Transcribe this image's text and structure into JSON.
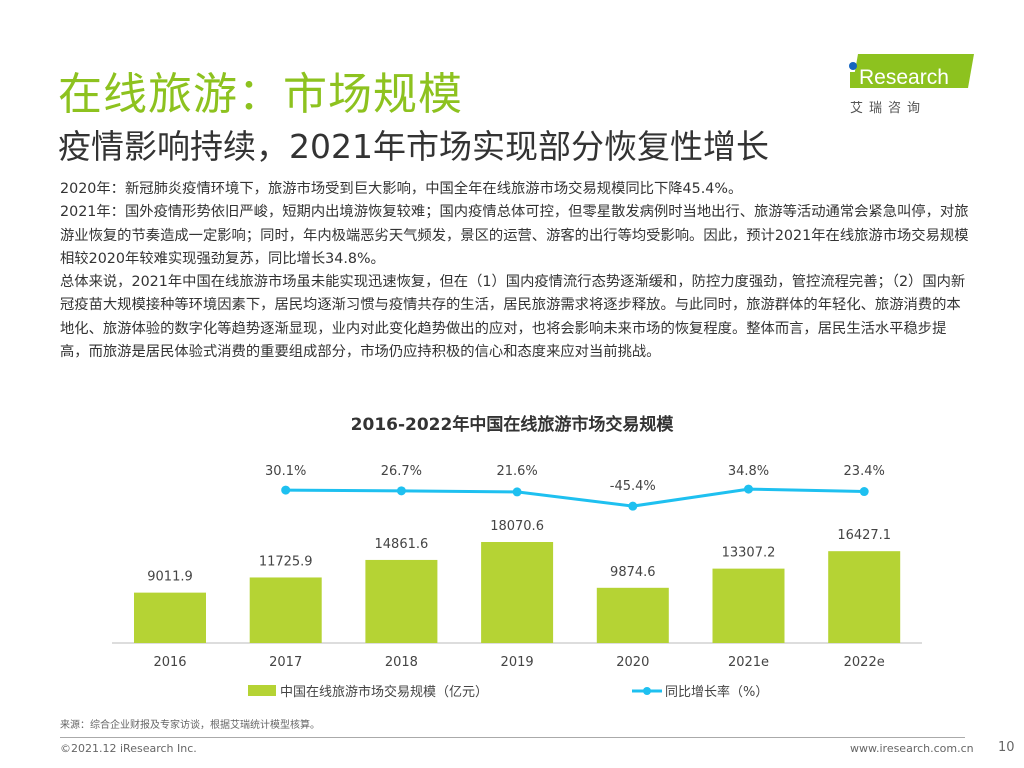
{
  "header": {
    "title": "在线旅游：市场规模",
    "subtitle": "疫情影响持续，2021年市场实现部分恢复性增长"
  },
  "logo": {
    "text": "iResearch",
    "cn": "艾 瑞 咨 询"
  },
  "body": [
    "2020年：新冠肺炎疫情环境下，旅游市场受到巨大影响，中国全年在线旅游市场交易规模同比下降45.4%。",
    "2021年：国外疫情形势依旧严峻，短期内出境游恢复较难；国内疫情总体可控，但零星散发病例时当地出行、旅游等活动通常会紧急叫停，对旅游业恢复的节奏造成一定影响；同时，年内极端恶劣天气频发，景区的运营、游客的出行等均受影响。因此，预计2021年在线旅游市场交易规模相较2020年较难实现强劲复苏，同比增长34.8%。",
    "总体来说，2021年中国在线旅游市场虽未能实现迅速恢复，但在（1）国内疫情流行态势逐渐缓和，防控力度强劲，管控流程完善；（2）国内新冠疫苗大规模接种等环境因素下，居民均逐渐习惯与疫情共存的生活，居民旅游需求将逐步释放。与此同时，旅游群体的年轻化、旅游消费的本地化、旅游体验的数字化等趋势逐渐显现，业内对此变化趋势做出的应对，也将会影响未来市场的恢复程度。整体而言，居民生活水平稳步提高，而旅游是居民体验式消费的重要组成部分，市场仍应持积极的信心和态度来应对当前挑战。"
  ],
  "chart_data": {
    "type": "bar+line",
    "title": "2016-2022年中国在线旅游市场交易规模",
    "categories": [
      "2016",
      "2017",
      "2018",
      "2019",
      "2020",
      "2021e",
      "2022e"
    ],
    "series": [
      {
        "name": "中国在线旅游市场交易规模（亿元）",
        "type": "bar",
        "color": "#b5d334",
        "values": [
          9011.9,
          11725.9,
          14861.6,
          18070.6,
          9874.6,
          13307.2,
          16427.1
        ],
        "labels": [
          "9011.9",
          "11725.9",
          "14861.6",
          "18070.6",
          "9874.6",
          "13307.2",
          "16427.1"
        ]
      },
      {
        "name": "同比增长率（%）",
        "type": "line",
        "color": "#1ec0f0",
        "values": [
          30.1,
          26.7,
          21.6,
          -45.4,
          34.8,
          23.4
        ],
        "x": [
          "2017",
          "2018",
          "2019",
          "2020",
          "2021e",
          "2022e"
        ],
        "labels": [
          "30.1%",
          "26.7%",
          "21.6%",
          "-45.4%",
          "34.8%",
          "23.4%"
        ]
      }
    ],
    "legend": "bottom"
  },
  "footer": {
    "source": "来源：综合企业财报及专家访谈，根据艾瑞统计模型核算。",
    "copyright": "©2021.12 iResearch Inc.",
    "url": "www.iresearch.com.cn",
    "page": "10"
  }
}
